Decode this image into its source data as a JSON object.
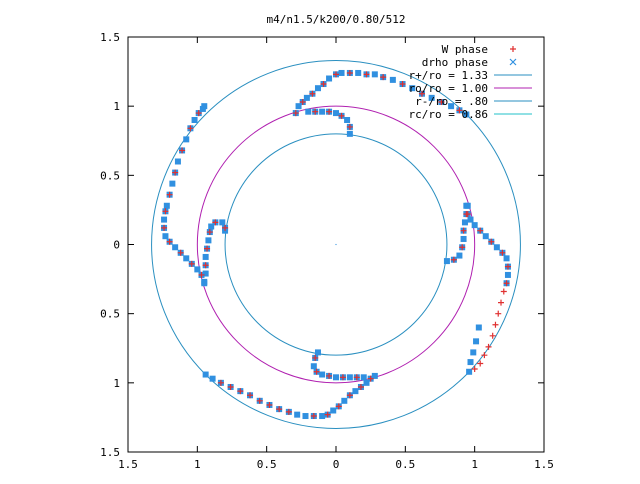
{
  "chart_data": {
    "type": "scatter",
    "title": "m4/n1.5/k200/0.80/512",
    "xlim": [
      -1.5,
      1.5
    ],
    "ylim": [
      -1.5,
      1.5
    ],
    "x_ticks": [
      "1.5",
      "1",
      "0.5",
      "0",
      "0.5",
      "1",
      "1.5"
    ],
    "y_ticks": [
      "1.5",
      "1",
      "0.5",
      "0",
      "0.5",
      "1",
      "1.5"
    ],
    "tick_values": [
      -1.5,
      -1,
      -0.5,
      0,
      0.5,
      1,
      1.5
    ],
    "grid": false,
    "legend_position": "top-right",
    "legend": [
      {
        "label": "W phase",
        "kind": "marker",
        "marker": "plus",
        "color": "#e03030"
      },
      {
        "label": "drho phase",
        "kind": "marker",
        "marker": "cross",
        "color": "#3090e0"
      },
      {
        "label": "r+/ro = 1.33",
        "kind": "line",
        "color": "#2a8fc0"
      },
      {
        "label": "ro/ro = 1.00",
        "kind": "line",
        "color": "#b020b0"
      },
      {
        "label": "r-/ro = .80",
        "kind": "line",
        "color": "#2a8fc0"
      },
      {
        "label": "rc/ro = 0.86",
        "kind": "line",
        "color": "#20c0c8"
      }
    ],
    "circles": [
      {
        "radius": 1.33,
        "color": "#2a8fc0"
      },
      {
        "radius": 1.0,
        "color": "#b020b0"
      },
      {
        "radius": 0.8,
        "color": "#2a8fc0"
      }
    ],
    "series": [
      {
        "name": "drho phase",
        "color": "#3090e0",
        "marker": "square",
        "points": [
          [
            -0.29,
            0.95
          ],
          [
            -0.27,
            1.0
          ],
          [
            -0.24,
            1.03
          ],
          [
            -0.21,
            1.06
          ],
          [
            -0.17,
            1.09
          ],
          [
            -0.13,
            1.13
          ],
          [
            -0.09,
            1.16
          ],
          [
            -0.05,
            1.2
          ],
          [
            0.0,
            1.23
          ],
          [
            0.04,
            1.24
          ],
          [
            0.1,
            1.24
          ],
          [
            0.16,
            1.24
          ],
          [
            0.22,
            1.23
          ],
          [
            -0.2,
            0.96
          ],
          [
            -0.15,
            0.96
          ],
          [
            -0.1,
            0.96
          ],
          [
            -0.05,
            0.96
          ],
          [
            0.0,
            0.95
          ],
          [
            0.04,
            0.93
          ],
          [
            0.08,
            0.9
          ],
          [
            0.1,
            0.85
          ],
          [
            0.1,
            0.8
          ],
          [
            0.28,
            1.23
          ],
          [
            0.34,
            1.21
          ],
          [
            0.41,
            1.19
          ],
          [
            0.48,
            1.16
          ],
          [
            0.55,
            1.13
          ],
          [
            0.62,
            1.09
          ],
          [
            0.69,
            1.06
          ],
          [
            0.76,
            1.03
          ],
          [
            0.83,
            1.0
          ],
          [
            0.89,
            0.97
          ],
          [
            0.94,
            0.94
          ],
          [
            0.94,
            0.28
          ],
          [
            0.95,
            0.22
          ],
          [
            0.97,
            0.18
          ],
          [
            1.0,
            0.14
          ],
          [
            1.04,
            0.1
          ],
          [
            1.08,
            0.06
          ],
          [
            1.12,
            0.02
          ],
          [
            1.16,
            -0.02
          ],
          [
            1.2,
            -0.06
          ],
          [
            1.23,
            -0.1
          ],
          [
            1.24,
            -0.16
          ],
          [
            1.24,
            -0.22
          ],
          [
            1.23,
            -0.28
          ],
          [
            0.95,
            0.28
          ],
          [
            0.94,
            0.22
          ],
          [
            0.93,
            0.16
          ],
          [
            0.92,
            0.1
          ],
          [
            0.92,
            0.04
          ],
          [
            0.91,
            -0.02
          ],
          [
            0.89,
            -0.08
          ],
          [
            0.85,
            -0.11
          ],
          [
            0.8,
            -0.12
          ],
          [
            0.96,
            -0.92
          ],
          [
            0.97,
            -0.85
          ],
          [
            0.99,
            -0.78
          ],
          [
            1.01,
            -0.7
          ],
          [
            1.03,
            -0.6
          ],
          [
            0.28,
            -0.95
          ],
          [
            0.25,
            -0.97
          ],
          [
            0.22,
            -1.0
          ],
          [
            0.18,
            -1.03
          ],
          [
            0.14,
            -1.06
          ],
          [
            0.1,
            -1.09
          ],
          [
            0.06,
            -1.13
          ],
          [
            0.02,
            -1.17
          ],
          [
            -0.02,
            -1.2
          ],
          [
            -0.06,
            -1.23
          ],
          [
            -0.1,
            -1.24
          ],
          [
            -0.16,
            -1.24
          ],
          [
            -0.22,
            -1.24
          ],
          [
            0.2,
            -0.96
          ],
          [
            0.15,
            -0.96
          ],
          [
            0.1,
            -0.96
          ],
          [
            0.05,
            -0.96
          ],
          [
            0.0,
            -0.96
          ],
          [
            -0.05,
            -0.95
          ],
          [
            -0.1,
            -0.94
          ],
          [
            -0.14,
            -0.92
          ],
          [
            -0.16,
            -0.88
          ],
          [
            -0.15,
            -0.82
          ],
          [
            -0.13,
            -0.78
          ],
          [
            -0.28,
            -1.23
          ],
          [
            -0.34,
            -1.21
          ],
          [
            -0.41,
            -1.19
          ],
          [
            -0.48,
            -1.16
          ],
          [
            -0.55,
            -1.13
          ],
          [
            -0.62,
            -1.09
          ],
          [
            -0.69,
            -1.06
          ],
          [
            -0.76,
            -1.03
          ],
          [
            -0.83,
            -1.0
          ],
          [
            -0.89,
            -0.97
          ],
          [
            -0.94,
            -0.94
          ],
          [
            -0.95,
            -0.28
          ],
          [
            -0.97,
            -0.22
          ],
          [
            -1.0,
            -0.18
          ],
          [
            -1.04,
            -0.14
          ],
          [
            -1.08,
            -0.1
          ],
          [
            -1.12,
            -0.06
          ],
          [
            -1.16,
            -0.02
          ],
          [
            -1.2,
            0.02
          ],
          [
            -1.23,
            0.06
          ],
          [
            -1.24,
            0.12
          ],
          [
            -1.24,
            0.18
          ],
          [
            -1.23,
            0.24
          ],
          [
            -0.95,
            -0.27
          ],
          [
            -0.94,
            -0.21
          ],
          [
            -0.94,
            -0.15
          ],
          [
            -0.94,
            -0.09
          ],
          [
            -0.93,
            -0.03
          ],
          [
            -0.92,
            0.03
          ],
          [
            -0.91,
            0.09
          ],
          [
            -0.9,
            0.13
          ],
          [
            -0.87,
            0.16
          ],
          [
            -0.82,
            0.16
          ],
          [
            -0.8,
            0.12
          ],
          [
            -0.8,
            0.1
          ],
          [
            -1.22,
            0.28
          ],
          [
            -1.2,
            0.36
          ],
          [
            -1.18,
            0.44
          ],
          [
            -1.16,
            0.52
          ],
          [
            -1.14,
            0.6
          ],
          [
            -1.11,
            0.68
          ],
          [
            -1.08,
            0.76
          ],
          [
            -1.05,
            0.84
          ],
          [
            -1.02,
            0.9
          ],
          [
            -0.99,
            0.95
          ],
          [
            -0.96,
            0.98
          ],
          [
            -0.95,
            1.0
          ]
        ]
      },
      {
        "name": "W phase",
        "color": "#e03030",
        "marker": "plus",
        "points": [
          [
            -0.29,
            0.95
          ],
          [
            -0.24,
            1.03
          ],
          [
            -0.17,
            1.09
          ],
          [
            -0.09,
            1.16
          ],
          [
            0.0,
            1.23
          ],
          [
            0.1,
            1.24
          ],
          [
            0.22,
            1.23
          ],
          [
            -0.15,
            0.96
          ],
          [
            -0.05,
            0.96
          ],
          [
            0.04,
            0.93
          ],
          [
            0.1,
            0.85
          ],
          [
            0.34,
            1.21
          ],
          [
            0.48,
            1.16
          ],
          [
            0.62,
            1.09
          ],
          [
            0.76,
            1.03
          ],
          [
            0.89,
            0.97
          ],
          [
            0.95,
            0.22
          ],
          [
            1.04,
            0.1
          ],
          [
            1.12,
            0.02
          ],
          [
            1.2,
            -0.06
          ],
          [
            1.24,
            -0.16
          ],
          [
            1.23,
            -0.28
          ],
          [
            0.94,
            0.22
          ],
          [
            0.92,
            0.1
          ],
          [
            0.91,
            -0.02
          ],
          [
            0.85,
            -0.11
          ],
          [
            1.21,
            -0.34
          ],
          [
            1.19,
            -0.42
          ],
          [
            1.17,
            -0.5
          ],
          [
            1.15,
            -0.58
          ],
          [
            1.13,
            -0.66
          ],
          [
            1.1,
            -0.74
          ],
          [
            1.07,
            -0.8
          ],
          [
            1.04,
            -0.86
          ],
          [
            1.0,
            -0.9
          ],
          [
            0.25,
            -0.97
          ],
          [
            0.18,
            -1.03
          ],
          [
            0.1,
            -1.09
          ],
          [
            0.02,
            -1.17
          ],
          [
            -0.06,
            -1.23
          ],
          [
            -0.16,
            -1.24
          ],
          [
            0.15,
            -0.96
          ],
          [
            0.05,
            -0.96
          ],
          [
            -0.05,
            -0.95
          ],
          [
            -0.14,
            -0.92
          ],
          [
            -0.15,
            -0.82
          ],
          [
            -0.34,
            -1.21
          ],
          [
            -0.41,
            -1.19
          ],
          [
            -0.48,
            -1.16
          ],
          [
            -0.55,
            -1.13
          ],
          [
            -0.62,
            -1.09
          ],
          [
            -0.69,
            -1.06
          ],
          [
            -0.76,
            -1.03
          ],
          [
            -0.83,
            -1.0
          ],
          [
            -0.97,
            -0.22
          ],
          [
            -1.04,
            -0.14
          ],
          [
            -1.12,
            -0.06
          ],
          [
            -1.2,
            0.02
          ],
          [
            -1.24,
            0.12
          ],
          [
            -1.23,
            0.24
          ],
          [
            -0.94,
            -0.15
          ],
          [
            -0.93,
            -0.03
          ],
          [
            -0.91,
            0.09
          ],
          [
            -0.87,
            0.16
          ],
          [
            -0.8,
            0.12
          ],
          [
            -1.2,
            0.36
          ],
          [
            -1.16,
            0.52
          ],
          [
            -1.11,
            0.68
          ],
          [
            -1.05,
            0.84
          ],
          [
            -0.99,
            0.95
          ]
        ]
      }
    ]
  }
}
